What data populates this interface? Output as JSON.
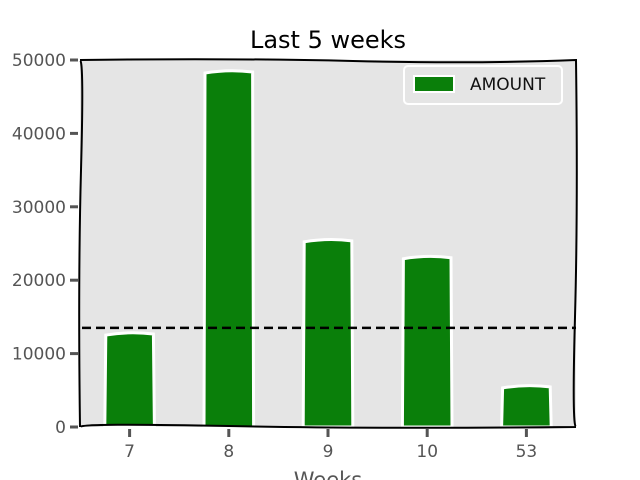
{
  "chart_data": {
    "type": "bar",
    "title": "Last 5 weeks",
    "xlabel": "Weeks",
    "ylabel": "",
    "categories": [
      "7",
      "8",
      "9",
      "10",
      "53"
    ],
    "series": [
      {
        "name": "AMOUNT",
        "values": [
          12800,
          48500,
          25500,
          23200,
          5600
        ]
      }
    ],
    "reference_line": {
      "value": 13500,
      "style": "dashed"
    },
    "ylim": [
      0,
      50000
    ],
    "yticks": [
      0,
      10000,
      20000,
      30000,
      40000,
      50000
    ],
    "legend": "top-right",
    "grid": false,
    "colors": {
      "bar": "#0a7f0a",
      "bar_edge": "#ffffff",
      "plot_bg": "#e5e5e5",
      "reference_line": "#000000"
    }
  }
}
